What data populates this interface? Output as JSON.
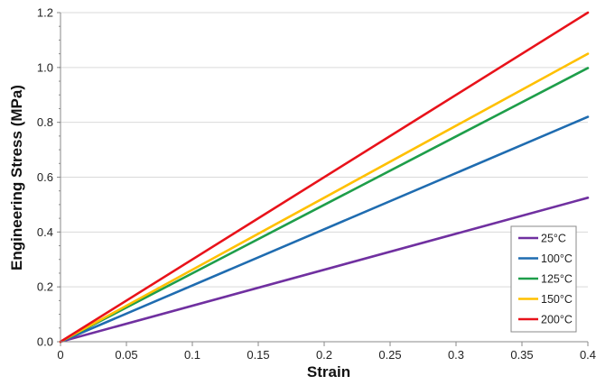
{
  "chart_data": {
    "type": "line",
    "title": "",
    "xlabel": "Strain",
    "ylabel": "Engineering Stress (MPa)",
    "xlim": [
      0,
      0.4
    ],
    "ylim": [
      0,
      1.2
    ],
    "x_ticks": [
      "0",
      "0.05",
      "0.1",
      "0.15",
      "0.2",
      "0.25",
      "0.3",
      "0.35",
      "0.4"
    ],
    "y_ticks": [
      "0.0",
      "0.2",
      "0.4",
      "0.6",
      "0.8",
      "1.0",
      "1.2"
    ],
    "grid": "horizontal",
    "legend_position": "bottom-right",
    "series": [
      {
        "name": "25°C",
        "color": "#7030a0",
        "x": [
          0,
          0.4
        ],
        "y": [
          0,
          0.525
        ]
      },
      {
        "name": "100°C",
        "color": "#1f6cb0",
        "x": [
          0,
          0.4
        ],
        "y": [
          0,
          0.82
        ]
      },
      {
        "name": "125°C",
        "color": "#1e9e4a",
        "x": [
          0,
          0.4
        ],
        "y": [
          0,
          0.998
        ]
      },
      {
        "name": "150°C",
        "color": "#ffc000",
        "x": [
          0,
          0.4
        ],
        "y": [
          0,
          1.05
        ]
      },
      {
        "name": "200°C",
        "color": "#e8121a",
        "x": [
          0,
          0.4
        ],
        "y": [
          0,
          1.2
        ]
      }
    ]
  }
}
